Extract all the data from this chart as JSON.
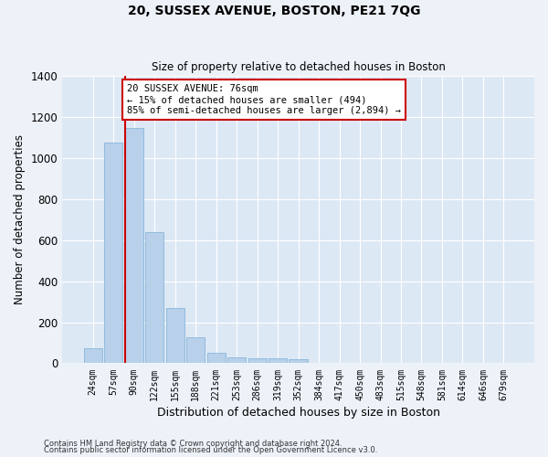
{
  "title1": "20, SUSSEX AVENUE, BOSTON, PE21 7QG",
  "title2": "Size of property relative to detached houses in Boston",
  "xlabel": "Distribution of detached houses by size in Boston",
  "ylabel": "Number of detached properties",
  "bar_color": "#b8d0ea",
  "bar_edge_color": "#7aafd4",
  "background_color": "#dde8f5",
  "grid_color": "#ffffff",
  "fig_background_color": "#edf2f9",
  "annotation_line_color": "#cc0000",
  "annotation_box_color": "#cc0000",
  "annotation_text": "20 SUSSEX AVENUE: 76sqm\n← 15% of detached houses are smaller (494)\n85% of semi-detached houses are larger (2,894) →",
  "categories": [
    "24sqm",
    "57sqm",
    "90sqm",
    "122sqm",
    "155sqm",
    "188sqm",
    "221sqm",
    "253sqm",
    "286sqm",
    "319sqm",
    "352sqm",
    "384sqm",
    "417sqm",
    "450sqm",
    "483sqm",
    "515sqm",
    "548sqm",
    "581sqm",
    "614sqm",
    "646sqm",
    "679sqm"
  ],
  "values": [
    75,
    1075,
    1150,
    640,
    270,
    125,
    50,
    30,
    25,
    25,
    20,
    0,
    0,
    0,
    0,
    0,
    0,
    0,
    0,
    0,
    0
  ],
  "ylim": [
    0,
    1400
  ],
  "yticks": [
    0,
    200,
    400,
    600,
    800,
    1000,
    1200,
    1400
  ],
  "line_x_index": 1.56,
  "footnote1": "Contains HM Land Registry data © Crown copyright and database right 2024.",
  "footnote2": "Contains public sector information licensed under the Open Government Licence v3.0."
}
